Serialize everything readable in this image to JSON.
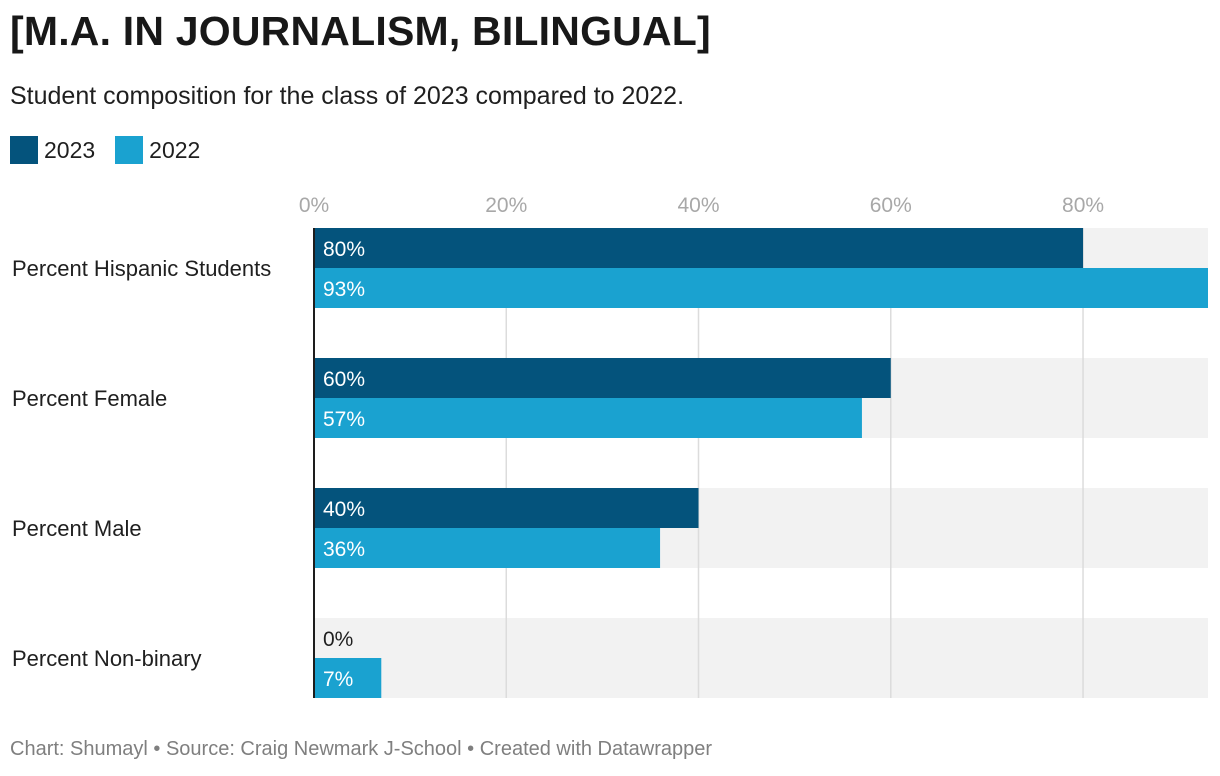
{
  "title": "[M.A. IN JOURNALISM, BILINGUAL]",
  "subtitle": "Student composition for the class of 2023 compared to 2022.",
  "footer": "Chart: Shumayl • Source: Craig Newmark J-School • Created with Datawrapper",
  "colors": {
    "2023": "#04537c",
    "2022": "#1aa2d0",
    "track": "#f2f2f2",
    "grid": "#dcdcdc",
    "tick": "#a8a8a8"
  },
  "chart_data": {
    "type": "bar",
    "orientation": "horizontal",
    "categories": [
      "Percent Hispanic Students",
      "Percent Female",
      "Percent Male",
      "Percent Non-binary"
    ],
    "series": [
      {
        "name": "2023",
        "values": [
          80,
          60,
          40,
          0
        ],
        "labels": [
          "80%",
          "60%",
          "40%",
          "0%"
        ]
      },
      {
        "name": "2022",
        "values": [
          93,
          57,
          36,
          7
        ],
        "labels": [
          "93%",
          "57%",
          "36%",
          "7%"
        ]
      }
    ],
    "xticks": [
      0,
      20,
      40,
      60,
      80
    ],
    "xtick_labels": [
      "0%",
      "20%",
      "40%",
      "60%",
      "80%"
    ],
    "xlim": [
      0,
      93
    ],
    "grid": true,
    "legend_position": "top-left"
  }
}
